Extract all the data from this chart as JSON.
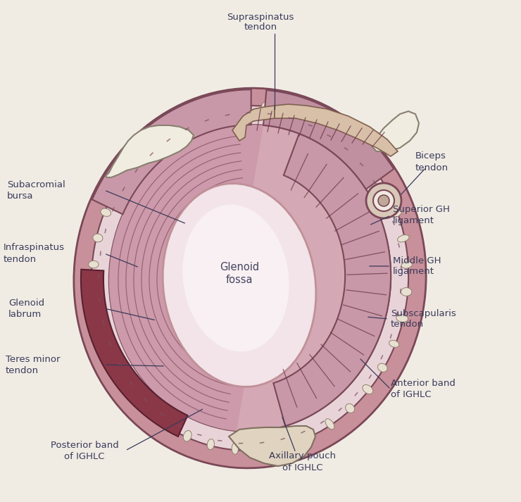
{
  "background": "#f0ece4",
  "colors": {
    "text_color": "#3a3a5a",
    "line_color": "#3a3a5a",
    "outer_ring_fc": "#c8909a",
    "outer_ring_ec": "#7a4858",
    "labrum_fc": "#e8d8dc",
    "labrum_ec": "#7a4858",
    "bursa_fc": "#8a3848",
    "bursa_ec": "#5a2030",
    "muscle_posterior": "#d4a0b0",
    "muscle_posterior_dark": "#b07888",
    "muscle_anterior": "#c890a0",
    "glenoid_fc": "#f0e0e4",
    "glenoid_ec": "#b08090",
    "acromion_fc": "#f0ece0",
    "acromion_ec": "#888070",
    "tendon_fc": "#d8c0a8",
    "tendon_ec": "#806050",
    "cartilage_fc": "#e8e0d0",
    "cartilage_ec": "#908070",
    "neck_fc": "#e0d4c0",
    "neck_ec": "#807060",
    "ligament_line": "#7a4858",
    "fiber_line": "#6a3848",
    "biceps_outer": "#c8b0a0",
    "biceps_inner": "#f0e8e0",
    "inferior_band_fc": "#c898a8",
    "inferior_band_ec": "#7a4858"
  },
  "labels": {
    "supraspinatus": [
      "Supraspinatus",
      "tendon"
    ],
    "subacromial": [
      "Subacromial",
      "bursa"
    ],
    "infraspinatus": [
      "Infraspinatus",
      "tendon"
    ],
    "glenoid_labrum": [
      "Glenoid",
      "labrum"
    ],
    "teres_minor": [
      "Teres minor",
      "tendon"
    ],
    "posterior_band": [
      "Posterior band",
      "of IGHLC"
    ],
    "axillary_pouch": [
      "Axillary pouch",
      "of IGHLC"
    ],
    "anterior_band": [
      "Anterior band",
      "of IGHLC"
    ],
    "subscapularis": [
      "Subscapularis",
      "tendon"
    ],
    "middle_gh": [
      "Middle GH",
      "ligament"
    ],
    "superior_gh": [
      "Superior GH",
      "ligament"
    ],
    "biceps": [
      "Biceps",
      "tendon"
    ],
    "glenoid_fossa": [
      "Glenoid",
      "fossa"
    ]
  }
}
